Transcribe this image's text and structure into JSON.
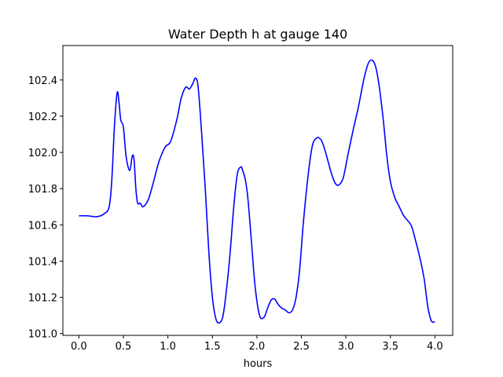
{
  "chart_data": {
    "type": "line",
    "title": "Water Depth h at gauge 140",
    "xlabel": "hours",
    "ylabel": "",
    "xlim": [
      -0.18,
      4.2
    ],
    "ylim": [
      100.99,
      102.59
    ],
    "xticks": [
      0.0,
      0.5,
      1.0,
      1.5,
      2.0,
      2.5,
      3.0,
      3.5,
      4.0
    ],
    "xtick_labels": [
      "0.0",
      "0.5",
      "1.0",
      "1.5",
      "2.0",
      "2.5",
      "3.0",
      "3.5",
      "4.0"
    ],
    "yticks": [
      101.0,
      101.2,
      101.4,
      101.6,
      101.8,
      102.0,
      102.2,
      102.4
    ],
    "ytick_labels": [
      "101.0",
      "101.2",
      "101.4",
      "101.6",
      "101.8",
      "102.0",
      "102.2",
      "102.4"
    ],
    "grid": false,
    "legend": "none",
    "series": [
      {
        "color": "#0000ff",
        "x": [
          0.0,
          0.1,
          0.2,
          0.28,
          0.34,
          0.37,
          0.4,
          0.43,
          0.45,
          0.47,
          0.5,
          0.53,
          0.57,
          0.6,
          0.62,
          0.64,
          0.66,
          0.69,
          0.72,
          0.78,
          0.84,
          0.9,
          0.97,
          1.03,
          1.1,
          1.15,
          1.2,
          1.24,
          1.28,
          1.31,
          1.34,
          1.38,
          1.42,
          1.46,
          1.5,
          1.54,
          1.58,
          1.62,
          1.66,
          1.7,
          1.74,
          1.78,
          1.82,
          1.84,
          1.87,
          1.9,
          1.94,
          1.98,
          2.03,
          2.08,
          2.12,
          2.16,
          2.2,
          2.24,
          2.28,
          2.32,
          2.36,
          2.4,
          2.44,
          2.48,
          2.52,
          2.57,
          2.62,
          2.67,
          2.72,
          2.76,
          2.8,
          2.84,
          2.88,
          2.92,
          2.97,
          3.02,
          3.08,
          3.14,
          3.2,
          3.25,
          3.29,
          3.33,
          3.37,
          3.42,
          3.46,
          3.5,
          3.55,
          3.6,
          3.65,
          3.7,
          3.74,
          3.79,
          3.84,
          3.88,
          3.92,
          3.96,
          4.0
        ],
        "values": [
          101.65,
          101.65,
          101.645,
          101.66,
          101.7,
          101.85,
          102.15,
          102.33,
          102.28,
          102.18,
          102.14,
          101.98,
          101.9,
          101.98,
          101.96,
          101.8,
          101.72,
          101.72,
          101.7,
          101.74,
          101.84,
          101.95,
          102.03,
          102.06,
          102.18,
          102.3,
          102.36,
          102.35,
          102.38,
          102.41,
          102.36,
          102.1,
          101.8,
          101.45,
          101.2,
          101.08,
          101.06,
          101.1,
          101.25,
          101.45,
          101.7,
          101.88,
          101.92,
          101.9,
          101.85,
          101.74,
          101.5,
          101.26,
          101.1,
          101.09,
          101.14,
          101.185,
          101.19,
          101.16,
          101.14,
          101.13,
          101.115,
          101.13,
          101.2,
          101.35,
          101.6,
          101.85,
          102.03,
          102.08,
          102.07,
          102.02,
          101.95,
          101.88,
          101.83,
          101.82,
          101.86,
          101.98,
          102.12,
          102.25,
          102.4,
          102.49,
          102.51,
          102.48,
          102.38,
          102.18,
          101.98,
          101.84,
          101.75,
          101.7,
          101.65,
          101.62,
          101.59,
          101.5,
          101.4,
          101.3,
          101.15,
          101.07,
          101.065
        ]
      }
    ]
  }
}
